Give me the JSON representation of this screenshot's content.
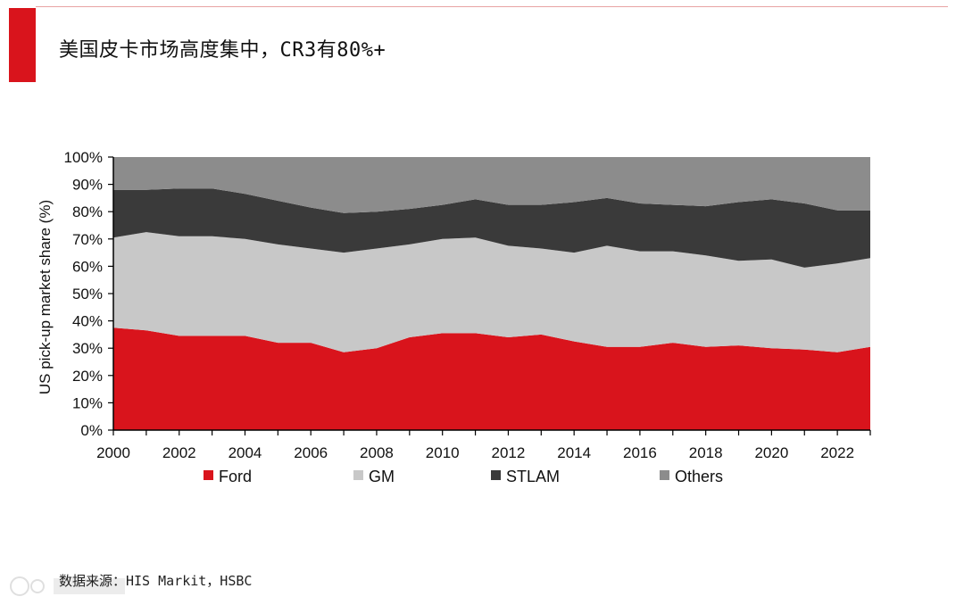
{
  "page": {
    "title": "美国皮卡市场高度集中，CR3有80%+",
    "source": "数据来源：HIS Markit，HSBC"
  },
  "colors": {
    "accent": "#d9141c",
    "ford": "#d9141c",
    "gm": "#c8c8c8",
    "stlam": "#3a3a3a",
    "others": "#8c8c8c"
  },
  "chart_data": {
    "type": "area",
    "stacked": true,
    "percent": true,
    "title": "",
    "xlabel": "",
    "ylabel": "US pick-up market share (%)",
    "xlim": [
      2000,
      2023
    ],
    "ylim": [
      0,
      100
    ],
    "x": [
      2000,
      2001,
      2002,
      2003,
      2004,
      2005,
      2006,
      2007,
      2008,
      2009,
      2010,
      2011,
      2012,
      2013,
      2014,
      2015,
      2016,
      2017,
      2018,
      2019,
      2020,
      2021,
      2022,
      2023
    ],
    "x_ticks": [
      "2000",
      "2002",
      "2004",
      "2006",
      "2008",
      "2010",
      "2012",
      "2014",
      "2016",
      "2018",
      "2020",
      "2022"
    ],
    "y_ticks": [
      "0%",
      "10%",
      "20%",
      "30%",
      "40%",
      "50%",
      "60%",
      "70%",
      "80%",
      "90%",
      "100%"
    ],
    "legend_position": "bottom",
    "series": [
      {
        "name": "Ford",
        "color_key": "ford",
        "values": [
          37.5,
          36.5,
          34.5,
          34.5,
          34.5,
          32,
          32,
          28.5,
          30,
          34,
          35.5,
          35.5,
          34,
          35,
          32.5,
          30.5,
          30.5,
          32,
          30.5,
          31,
          30,
          29.5,
          28.5,
          30.5
        ]
      },
      {
        "name": "GM",
        "color_key": "gm",
        "values": [
          33,
          36,
          36.5,
          36.5,
          35.5,
          36,
          34.5,
          36.5,
          36.5,
          34,
          34.5,
          35,
          33.5,
          31.5,
          32.5,
          37,
          35,
          33.5,
          33.5,
          31,
          32.5,
          30,
          32.5,
          32.5
        ]
      },
      {
        "name": "STLAM",
        "color_key": "stlam",
        "values": [
          17.5,
          15.5,
          17.5,
          17.5,
          16.5,
          16,
          15,
          14.5,
          13.5,
          13,
          12.5,
          14,
          15,
          16,
          18.5,
          17.5,
          17.5,
          17,
          18,
          21.5,
          22,
          23.5,
          19.5,
          17.5
        ]
      },
      {
        "name": "Others",
        "color_key": "others",
        "values": [
          12,
          12,
          11.5,
          11.5,
          13.5,
          16,
          18.5,
          20.5,
          20,
          19,
          17.5,
          15.5,
          17.5,
          17.5,
          16.5,
          15,
          17,
          17.5,
          18,
          16.5,
          15.5,
          17,
          19.5,
          19.5
        ]
      }
    ]
  }
}
